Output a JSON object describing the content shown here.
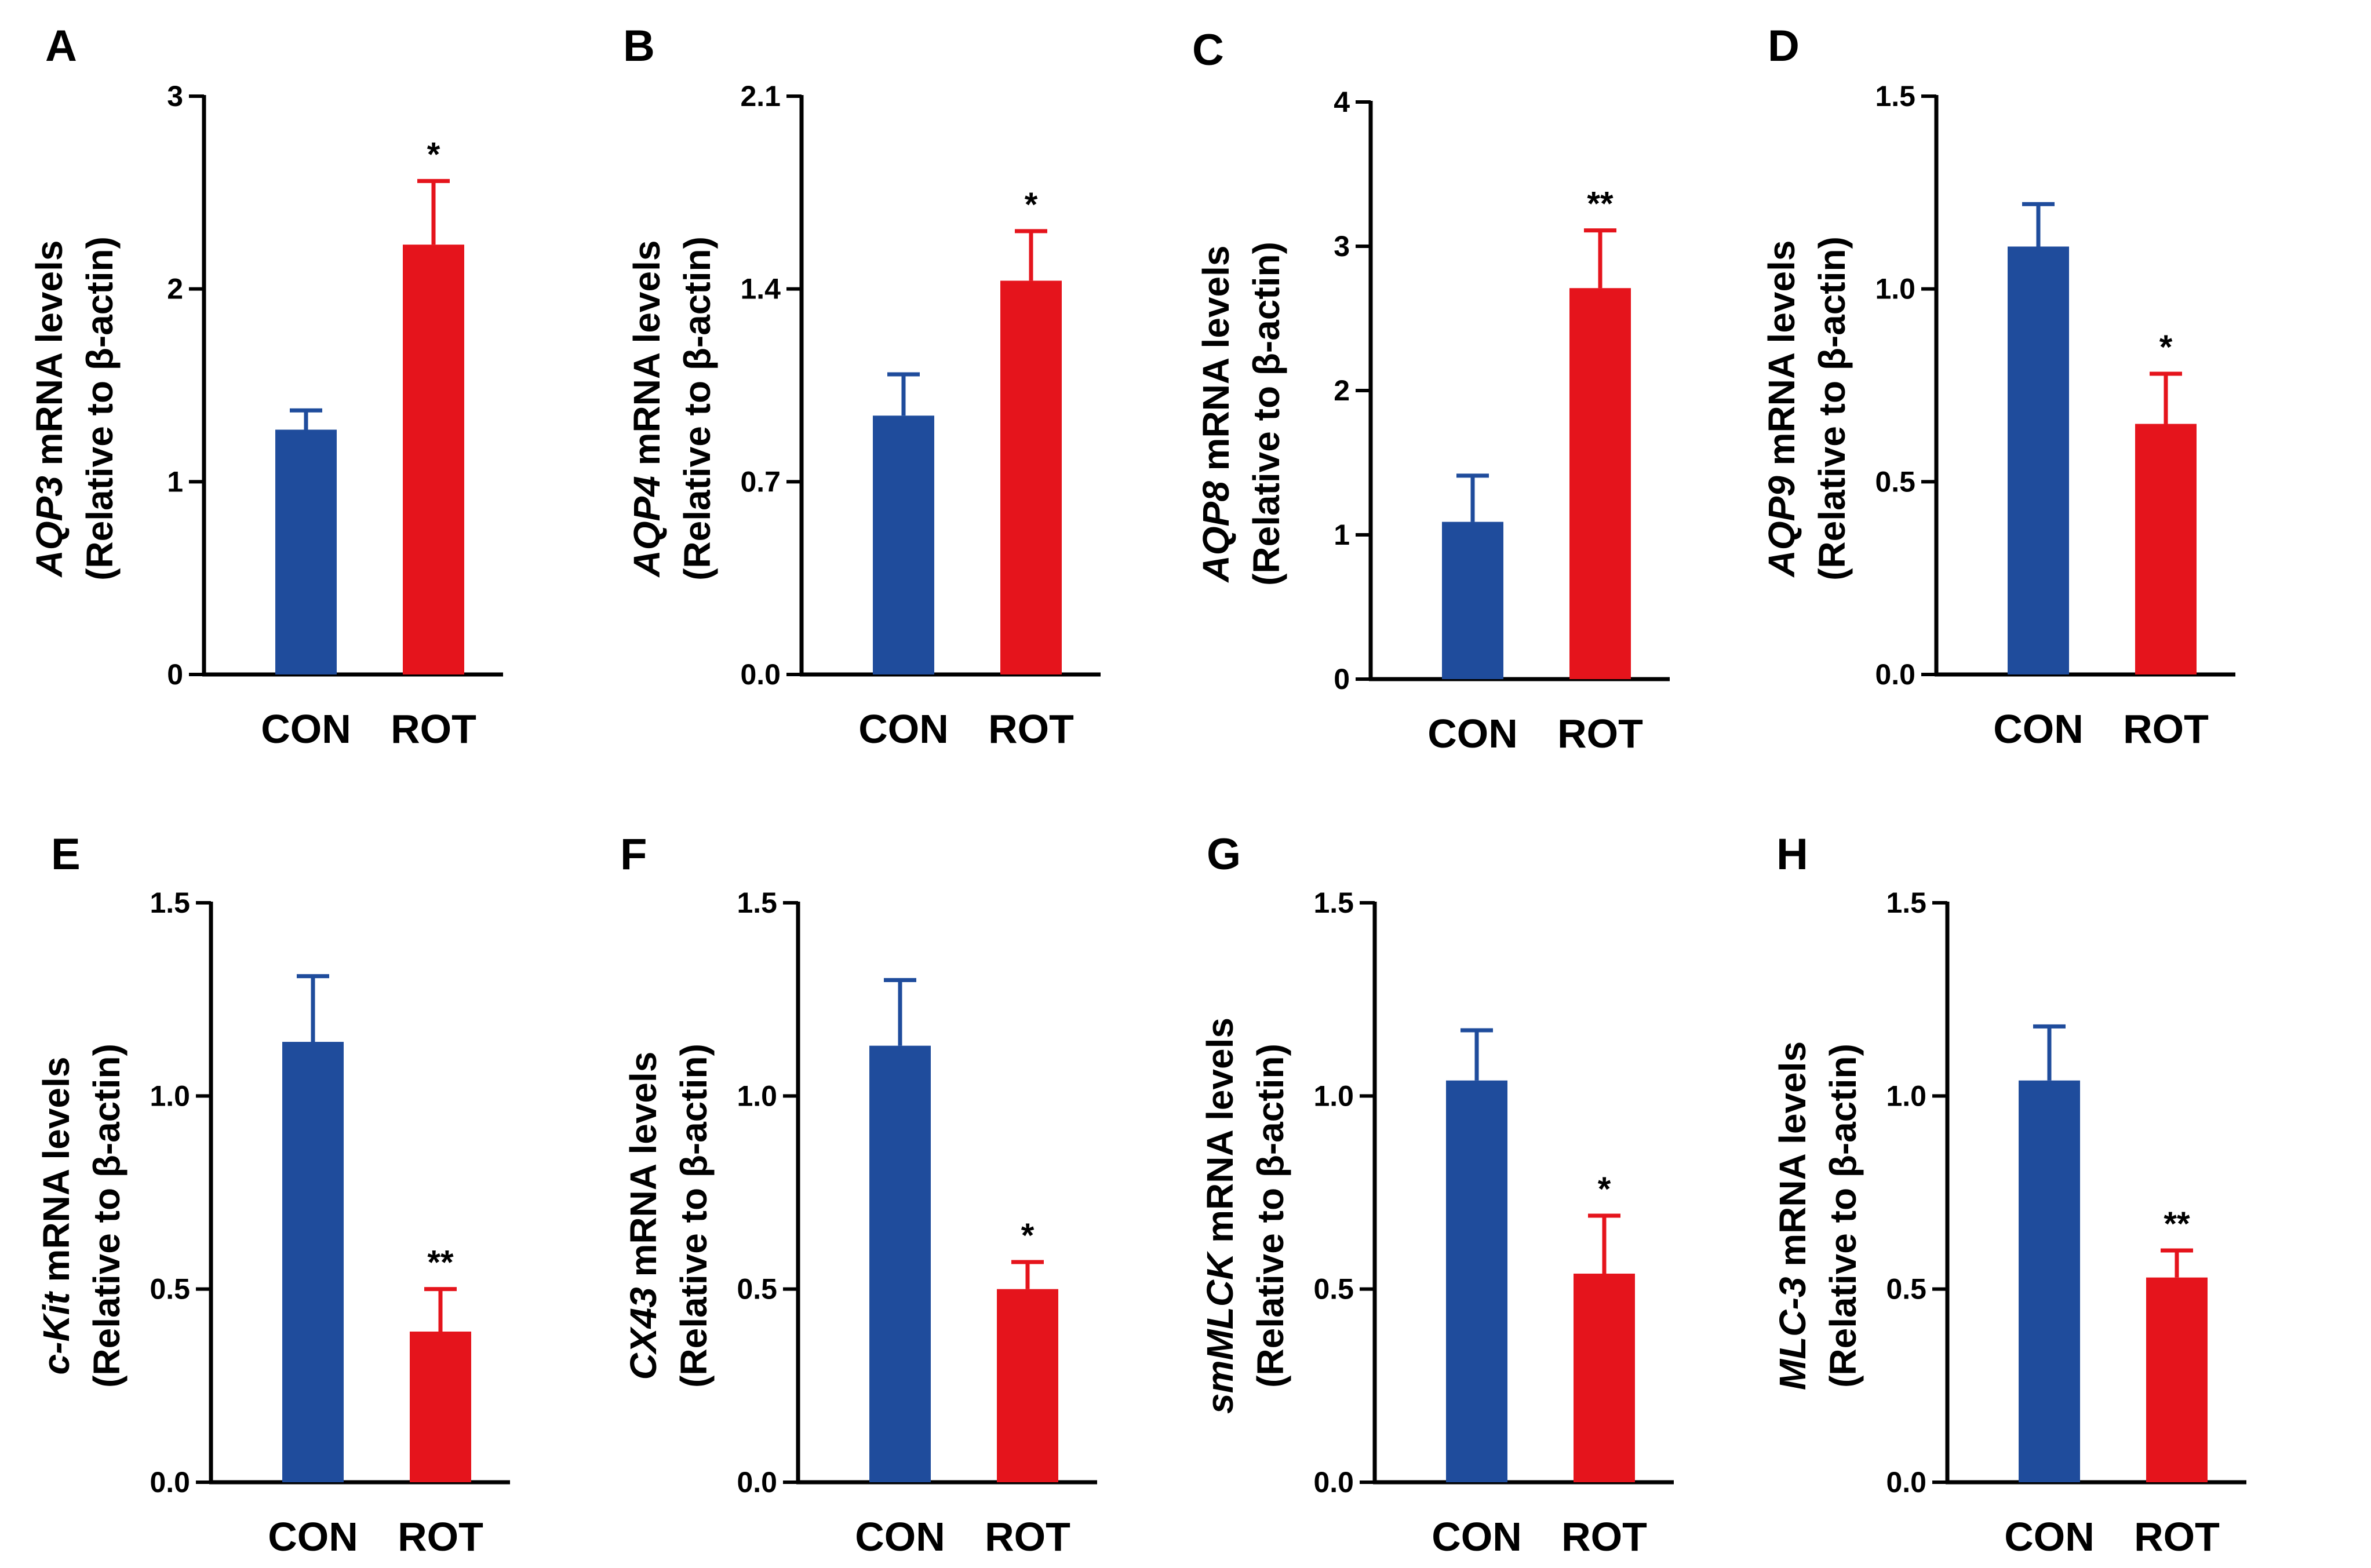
{
  "colors": {
    "con": "#1f4c9c",
    "rot": "#e5141c",
    "axis": "#000000"
  },
  "chart_data": [
    {
      "type": "bar",
      "panel": "A",
      "gene": "AQP3",
      "ylabel_suffix": " mRNA levels",
      "ylabel2": "(Relative to β-actin)",
      "categories": [
        "CON",
        "ROT"
      ],
      "values": [
        1.27,
        2.23
      ],
      "errors": [
        0.1,
        0.33
      ],
      "significance": [
        "",
        "*"
      ],
      "ylim": [
        0,
        3
      ],
      "yticks": [
        "0",
        "1",
        "2",
        "3"
      ]
    },
    {
      "type": "bar",
      "panel": "B",
      "gene": "AQP4",
      "ylabel_suffix": " mRNA levels",
      "ylabel2": "(Relative to β-actin)",
      "categories": [
        "CON",
        "ROT"
      ],
      "values": [
        0.94,
        1.43
      ],
      "errors": [
        0.15,
        0.18
      ],
      "significance": [
        "",
        "*"
      ],
      "ylim": [
        0,
        2.1
      ],
      "yticks": [
        "0.0",
        "0.7",
        "1.4",
        "2.1"
      ]
    },
    {
      "type": "bar",
      "panel": "C",
      "gene": "AQP8",
      "ylabel_suffix": " mRNA levels",
      "ylabel2": "(Relative to β-actin)",
      "categories": [
        "CON",
        "ROT"
      ],
      "values": [
        1.09,
        2.71
      ],
      "errors": [
        0.32,
        0.4
      ],
      "significance": [
        "",
        "**"
      ],
      "ylim": [
        0,
        4
      ],
      "yticks": [
        "0",
        "1",
        "2",
        "3",
        "4"
      ]
    },
    {
      "type": "bar",
      "panel": "D",
      "gene": "AQP9",
      "ylabel_suffix": " mRNA levels",
      "ylabel2": "(Relative to β-actin)",
      "categories": [
        "CON",
        "ROT"
      ],
      "values": [
        1.11,
        0.65
      ],
      "errors": [
        0.11,
        0.13
      ],
      "significance": [
        "",
        "*"
      ],
      "ylim": [
        0,
        1.5
      ],
      "yticks": [
        "0.0",
        "0.5",
        "1.0",
        "1.5"
      ]
    },
    {
      "type": "bar",
      "panel": "E",
      "gene": "c-Kit",
      "ylabel_suffix": " mRNA levels",
      "ylabel2": "(Relative to β-actin)",
      "categories": [
        "CON",
        "ROT"
      ],
      "values": [
        1.14,
        0.39
      ],
      "errors": [
        0.17,
        0.11
      ],
      "significance": [
        "",
        "**"
      ],
      "ylim": [
        0,
        1.5
      ],
      "yticks": [
        "0.0",
        "0.5",
        "1.0",
        "1.5"
      ]
    },
    {
      "type": "bar",
      "panel": "F",
      "gene": "CX43",
      "ylabel_suffix": " mRNA levels",
      "ylabel2": "(Relative to β-actin)",
      "categories": [
        "CON",
        "ROT"
      ],
      "values": [
        1.13,
        0.5
      ],
      "errors": [
        0.17,
        0.07
      ],
      "significance": [
        "",
        "*"
      ],
      "ylim": [
        0,
        1.5
      ],
      "yticks": [
        "0.0",
        "0.5",
        "1.0",
        "1.5"
      ]
    },
    {
      "type": "bar",
      "panel": "G",
      "gene": "smMLCK",
      "ylabel_suffix": " mRNA levels",
      "ylabel2": "(Relative to β-actin)",
      "categories": [
        "CON",
        "ROT"
      ],
      "values": [
        1.04,
        0.54
      ],
      "errors": [
        0.13,
        0.15
      ],
      "significance": [
        "",
        "*"
      ],
      "ylim": [
        0,
        1.5
      ],
      "yticks": [
        "0.0",
        "0.5",
        "1.0",
        "1.5"
      ]
    },
    {
      "type": "bar",
      "panel": "H",
      "gene": "MLC-3",
      "ylabel_suffix": " mRNA levels",
      "ylabel2": "(Relative to β-actin)",
      "categories": [
        "CON",
        "ROT"
      ],
      "values": [
        1.04,
        0.53
      ],
      "errors": [
        0.14,
        0.07
      ],
      "significance": [
        "",
        "**"
      ],
      "ylim": [
        0,
        1.5
      ],
      "yticks": [
        "0.0",
        "0.5",
        "1.0",
        "1.5"
      ]
    }
  ]
}
